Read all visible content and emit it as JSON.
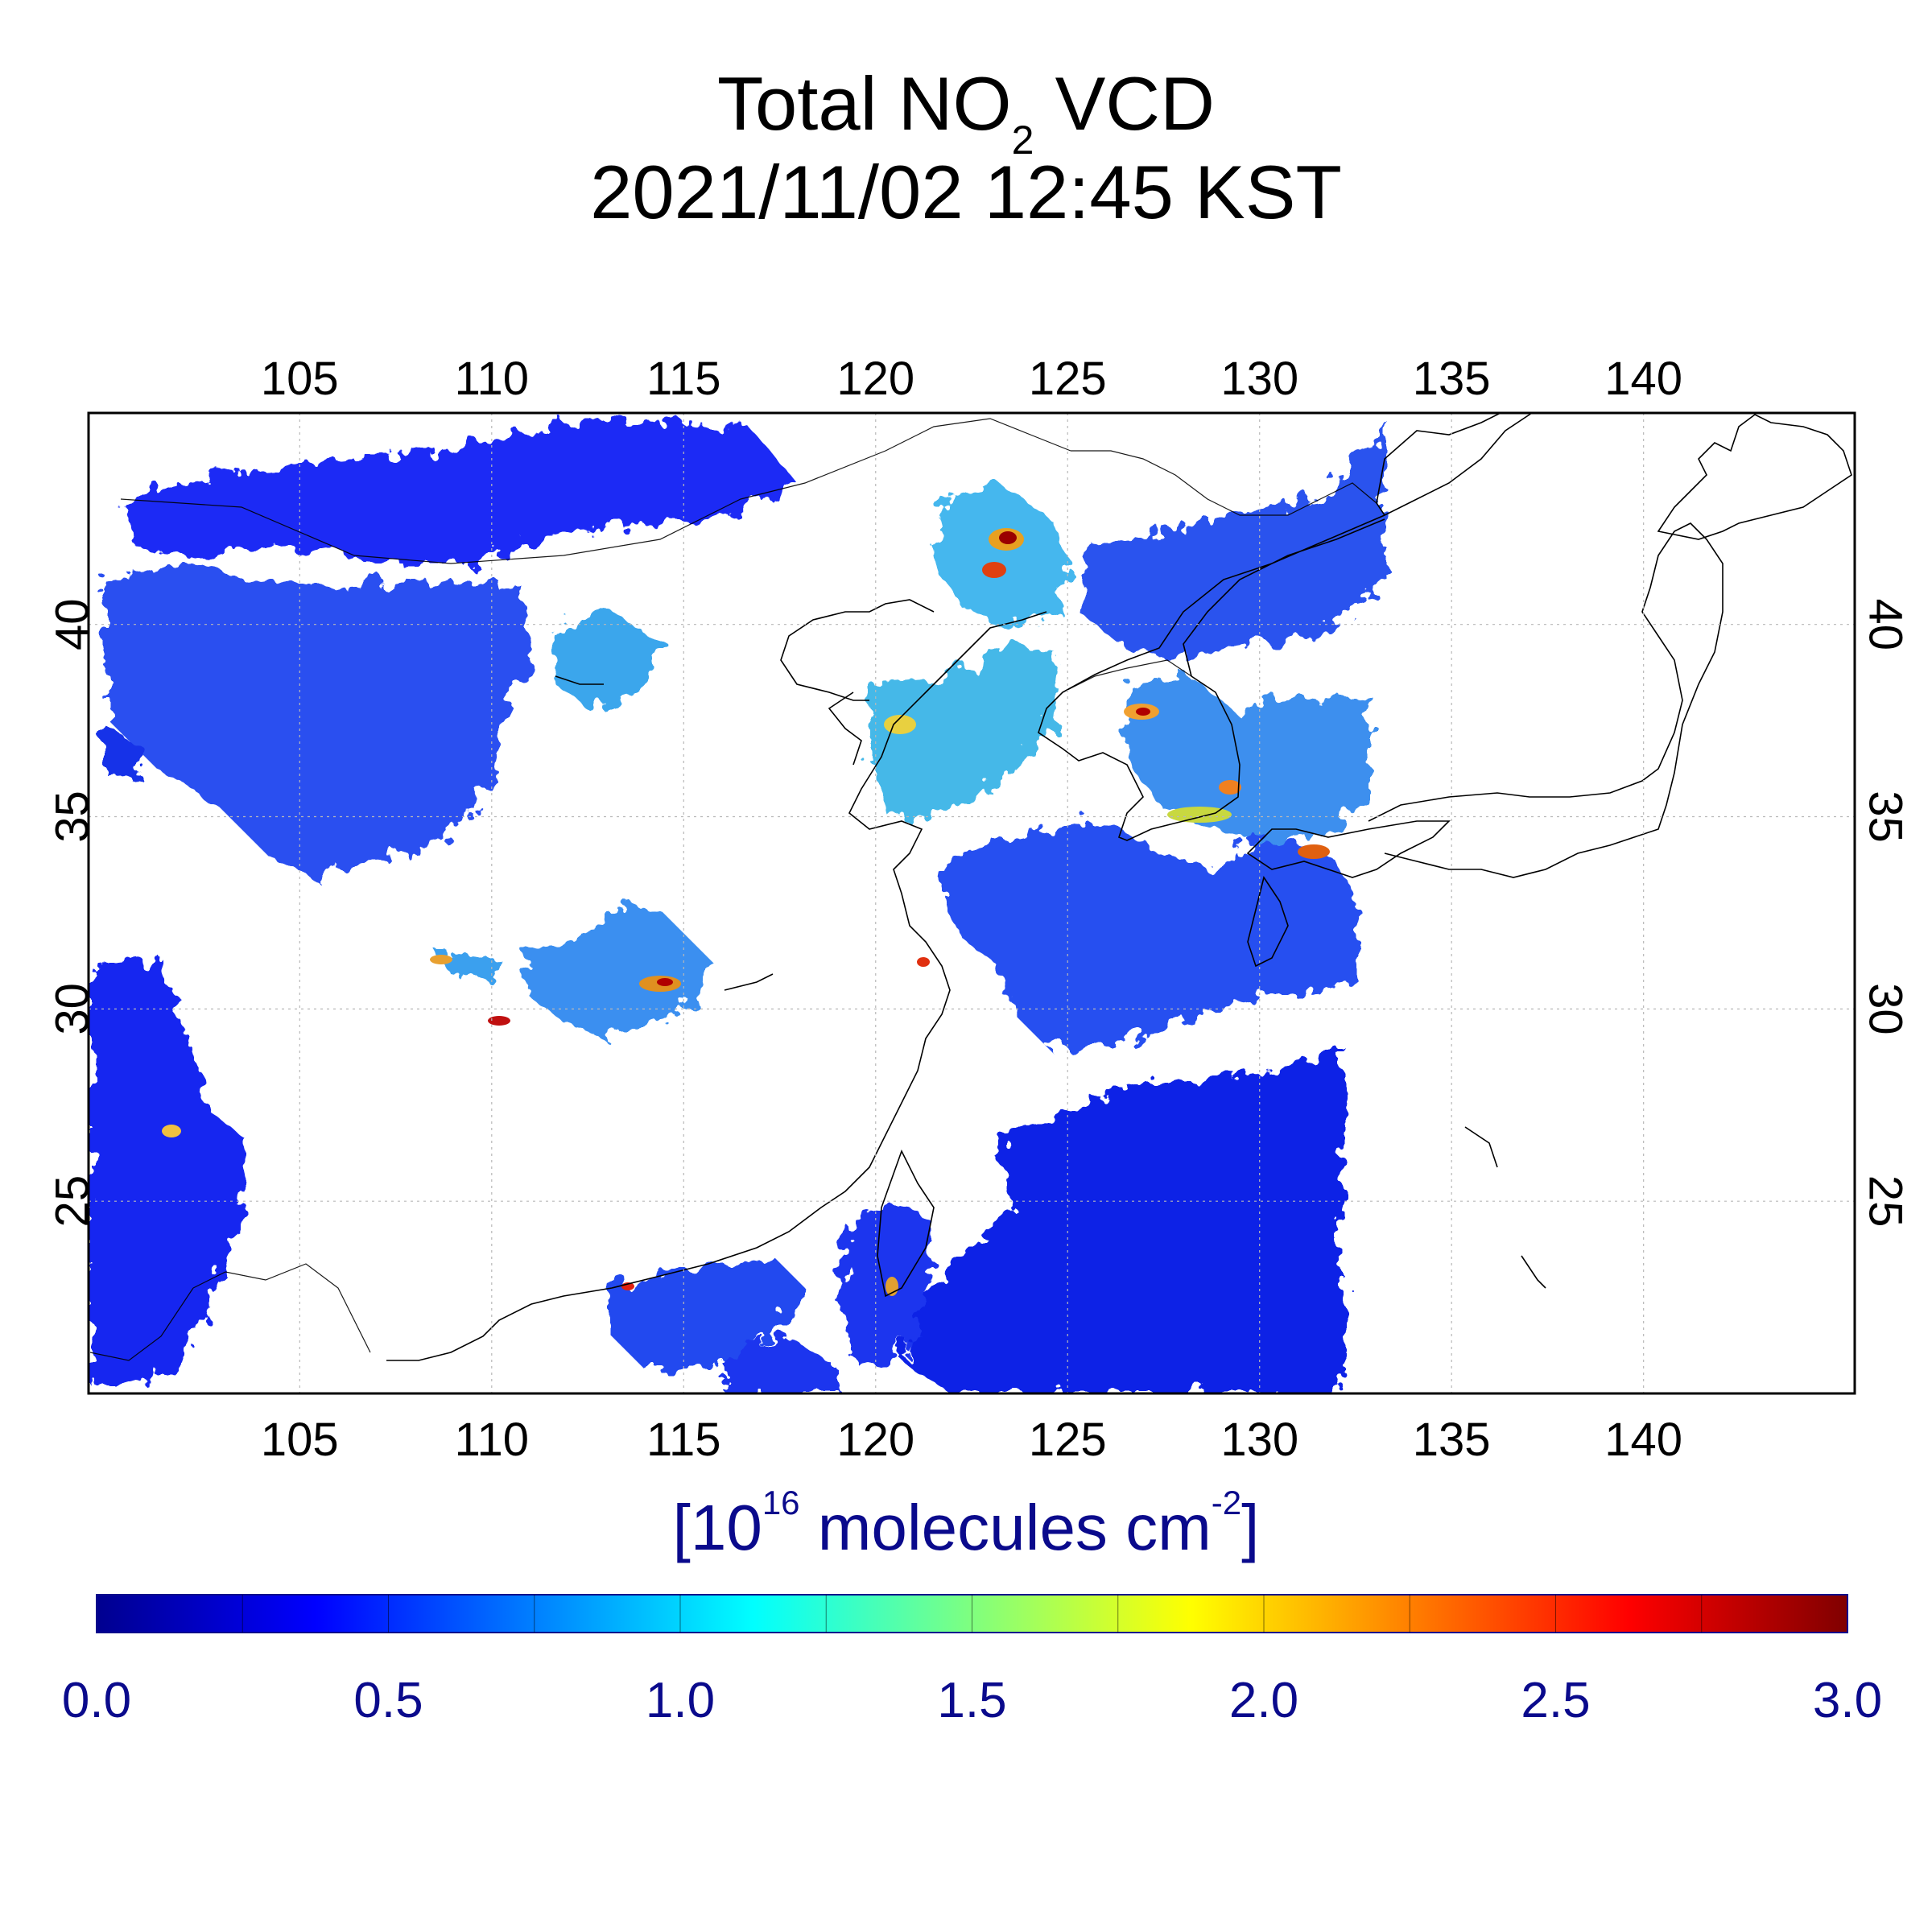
{
  "title": {
    "prefix": "Total NO",
    "subscript": "2",
    "suffix": " VCD",
    "line2": "2021/11/02 12:45 KST"
  },
  "map": {
    "lon_range": [
      99.5,
      145.5
    ],
    "lat_range": [
      20,
      45.5
    ],
    "lon_ticks": [
      "105",
      "110",
      "115",
      "120",
      "125",
      "130",
      "135",
      "140"
    ],
    "lat_ticks": [
      "25",
      "30",
      "35",
      "40"
    ],
    "grid": true,
    "projection": "equirectangular"
  },
  "colorbar": {
    "unit_open": "[10",
    "unit_exp": "16",
    "unit_mid": " molecules cm",
    "unit_exp2": "-2",
    "unit_close": "]",
    "ticks": [
      "0.0",
      "0.5",
      "1.0",
      "1.5",
      "2.0",
      "2.5",
      "3.0"
    ],
    "range": [
      0,
      3
    ],
    "colormap": "jet",
    "colors": [
      "#00008f",
      "#0000ff",
      "#00ffff",
      "#7fff7f",
      "#ffff00",
      "#ff0000",
      "#800000"
    ]
  }
}
